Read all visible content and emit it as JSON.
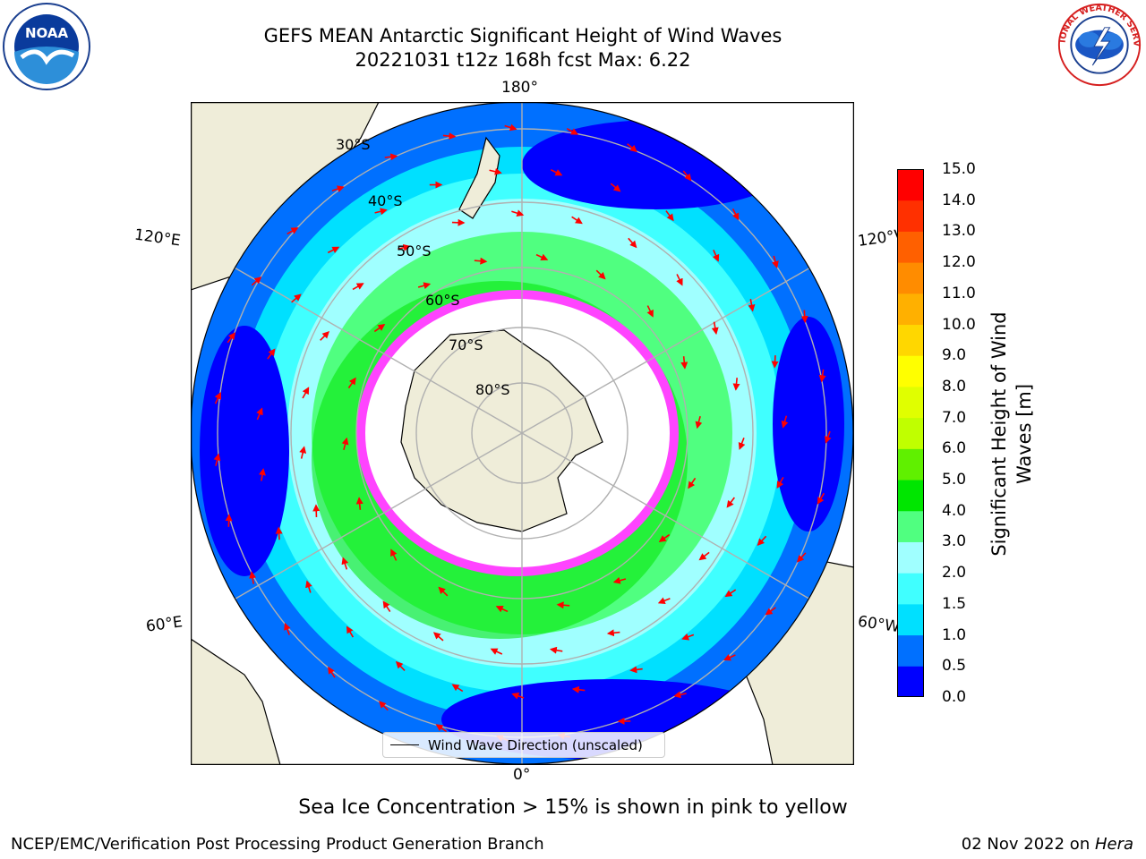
{
  "header": {
    "title_line1": "GEFS MEAN Antarctic Significant Height of Wind Waves",
    "title_line2": "20221031 t12z 168h fcst   Max: 6.22"
  },
  "logos": {
    "left": {
      "name": "noaa-logo",
      "text": "NOAA",
      "ring_text": "NATIONAL OCEANIC AND ATMOSPHERIC ADMINISTRATION · U.S. DEPARTMENT OF COMMERCE"
    },
    "right": {
      "name": "nws-logo",
      "ring_text": "NATIONAL WEATHER SERVICE"
    }
  },
  "map": {
    "projection": "south-polar-stereographic",
    "longitude_labels": {
      "top": "180°",
      "bottom": "0°",
      "upper_left": "120°E",
      "lower_left": "60°E",
      "upper_right": "120°W",
      "lower_right": "60°W"
    },
    "latitude_labels": [
      "30°S",
      "40°S",
      "50°S",
      "60°S",
      "70°S",
      "80°S"
    ],
    "colors": {
      "ocean_deep": "#0000ff",
      "land": "#efedd9",
      "coast": "#000000",
      "grid": "#b0b0b0",
      "arrow": "#ff0000",
      "sea_ice": "#ff44ff"
    }
  },
  "colorbar": {
    "label_line1": "Significant Height of Wind",
    "label_line2": "Waves [m]",
    "levels": [
      "0.0",
      "0.5",
      "1.0",
      "1.5",
      "2.0",
      "3.0",
      "4.0",
      "5.0",
      "6.0",
      "7.0",
      "8.0",
      "9.0",
      "10.0",
      "11.0",
      "12.0",
      "13.0",
      "14.0",
      "15.0"
    ],
    "colors": [
      "#0000ff",
      "#0070ff",
      "#00e0ff",
      "#40ffff",
      "#a0ffff",
      "#50ff80",
      "#00e600",
      "#60f000",
      "#c0ff00",
      "#e0ff00",
      "#ffff00",
      "#ffd700",
      "#ffb000",
      "#ff8c00",
      "#ff6000",
      "#ff3000",
      "#ff0000"
    ]
  },
  "legend": {
    "label": "Wind Wave Direction (unscaled)"
  },
  "note": "Sea Ice Concentration > 15% is shown in pink to yellow",
  "footer": {
    "left": "NCEP/EMC/Verification Post Processing Product Generation Branch",
    "right_prefix": "02 Nov 2022 on ",
    "right_host": "Hera"
  }
}
